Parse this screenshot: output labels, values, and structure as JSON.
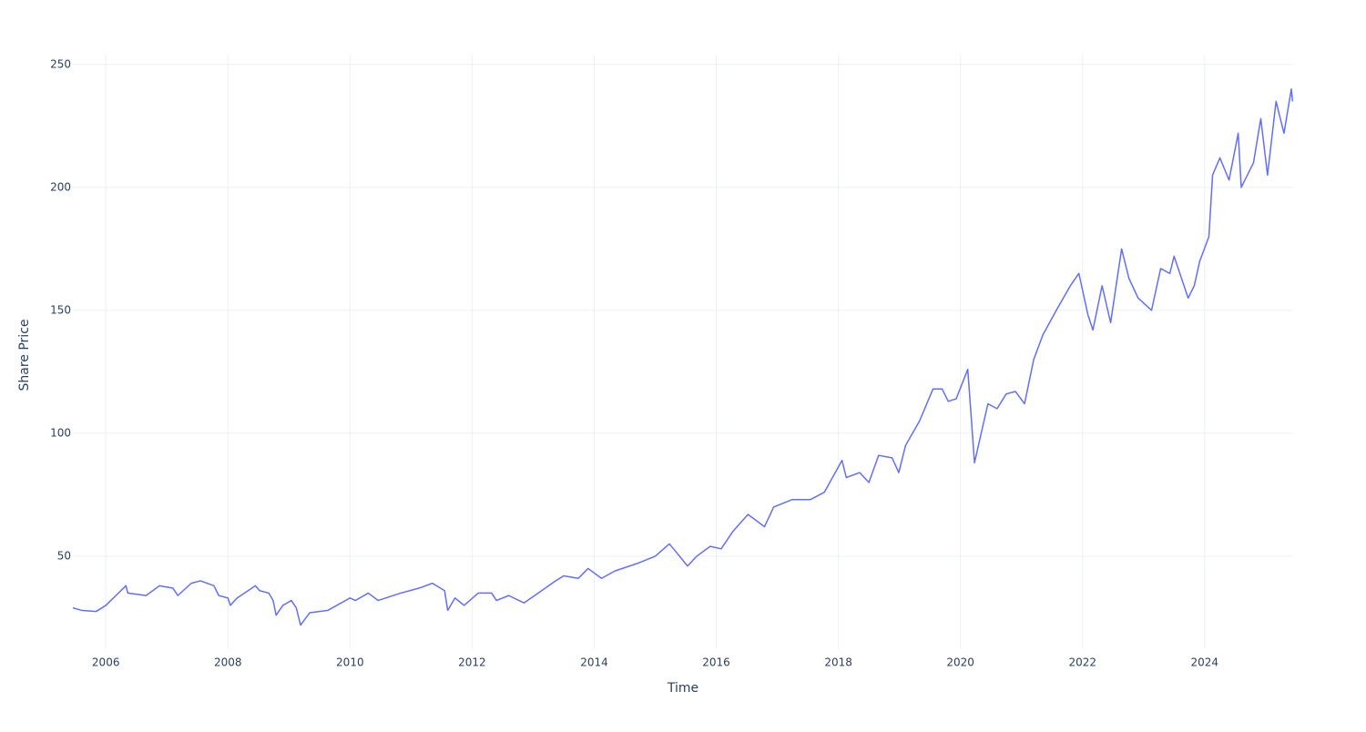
{
  "chart_data": {
    "type": "line",
    "x_label": "Time",
    "y_label": "Share Price",
    "x": [
      2005.46,
      2005.6,
      2005.84,
      2006.0,
      2006.33,
      2006.36,
      2006.66,
      2006.88,
      2007.1,
      2007.18,
      2007.4,
      2007.55,
      2007.77,
      2007.85,
      2008.0,
      2008.04,
      2008.15,
      2008.45,
      2008.52,
      2008.67,
      2008.74,
      2008.79,
      2008.9,
      2009.04,
      2009.12,
      2009.19,
      2009.34,
      2009.64,
      2010.0,
      2010.09,
      2010.3,
      2010.46,
      2010.83,
      2011.13,
      2011.35,
      2011.55,
      2011.6,
      2011.72,
      2011.87,
      2012.1,
      2012.32,
      2012.4,
      2012.6,
      2012.85,
      2013.14,
      2013.37,
      2013.5,
      2013.74,
      2013.9,
      2014.12,
      2014.34,
      2014.7,
      2015.0,
      2015.23,
      2015.3,
      2015.53,
      2015.68,
      2015.9,
      2016.08,
      2016.27,
      2016.52,
      2016.79,
      2016.94,
      2017.24,
      2017.54,
      2017.77,
      2018.06,
      2018.13,
      2018.35,
      2018.5,
      2018.66,
      2018.88,
      2018.99,
      2019.1,
      2019.33,
      2019.55,
      2019.7,
      2019.8,
      2019.93,
      2020.12,
      2020.23,
      2020.34,
      2020.45,
      2020.6,
      2020.75,
      2020.9,
      2021.05,
      2021.2,
      2021.35,
      2021.57,
      2021.8,
      2021.94,
      2022.09,
      2022.17,
      2022.32,
      2022.46,
      2022.64,
      2022.76,
      2022.91,
      2023.13,
      2023.28,
      2023.43,
      2023.5,
      2023.73,
      2023.83,
      2023.92,
      2024.07,
      2024.13,
      2024.25,
      2024.4,
      2024.55,
      2024.6,
      2024.8,
      2024.92,
      2025.03,
      2025.17,
      2025.3,
      2025.42,
      2025.44
    ],
    "values": [
      29,
      28,
      27.5,
      30,
      38,
      35,
      34,
      38,
      37,
      34,
      39,
      40,
      38,
      34,
      33,
      30,
      33,
      38,
      36,
      35,
      32,
      26,
      30,
      32,
      29,
      22,
      27,
      28,
      33,
      32,
      35,
      32,
      35,
      37,
      39,
      36,
      28,
      33,
      30,
      35,
      35,
      32,
      34,
      31,
      36,
      40,
      42,
      41,
      45,
      41,
      44,
      47,
      50,
      55,
      53,
      46,
      50,
      54,
      53,
      60,
      67,
      62,
      70,
      73,
      73,
      76,
      89,
      82,
      84,
      80,
      91,
      90,
      84,
      95,
      105,
      118,
      118,
      113,
      114,
      126,
      88,
      100,
      112,
      110,
      116,
      117,
      112,
      130,
      140,
      150,
      160,
      165,
      148,
      142,
      160,
      145,
      175,
      163,
      155,
      150,
      167,
      165,
      172,
      155,
      160,
      170,
      180,
      205,
      212,
      203,
      222,
      200,
      210,
      228,
      205,
      235,
      222,
      240,
      235
    ],
    "color": "#636efa",
    "xlim": [
      2005.46,
      2025.45
    ],
    "xticks": [
      2006,
      2008,
      2010,
      2012,
      2014,
      2016,
      2018,
      2020,
      2022,
      2024
    ],
    "ylim": [
      12.2,
      254
    ],
    "yticks": [
      50,
      100,
      150,
      200,
      250
    ],
    "grid": true
  }
}
